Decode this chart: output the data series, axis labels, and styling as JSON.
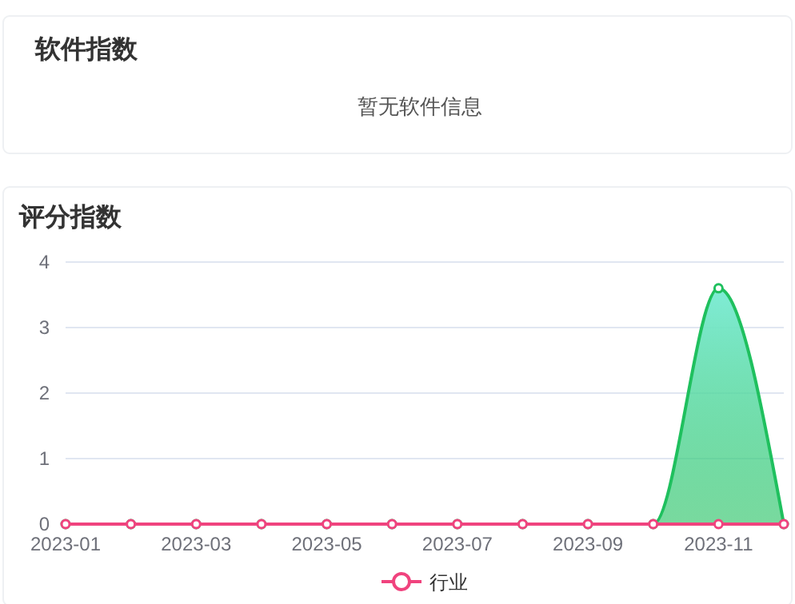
{
  "chart_data": [
    {
      "type": "other",
      "title": "软件指数",
      "annotations": [
        "暂无软件信息"
      ]
    },
    {
      "type": "line",
      "title": "评分指数",
      "categories": [
        "2023-01",
        null,
        "2023-03",
        null,
        "2023-05",
        null,
        "2023-07",
        null,
        "2023-09",
        null,
        "2023-11",
        null
      ],
      "series": [
        {
          "name": "行业",
          "type": "line",
          "color": "#f0437e",
          "values": [
            0,
            0,
            0,
            0,
            0,
            0,
            0,
            0,
            0,
            0,
            0,
            0
          ]
        },
        {
          "type": "area",
          "color": "#1fc05e",
          "values": [
            0,
            0,
            0,
            0,
            0,
            0,
            0,
            0,
            0,
            0,
            3.6,
            0
          ]
        }
      ],
      "ylim": [
        0,
        4
      ],
      "yticks": [
        0,
        1,
        2,
        3,
        4
      ],
      "grid": "y",
      "legend": "bottom",
      "marker": "circle"
    }
  ]
}
